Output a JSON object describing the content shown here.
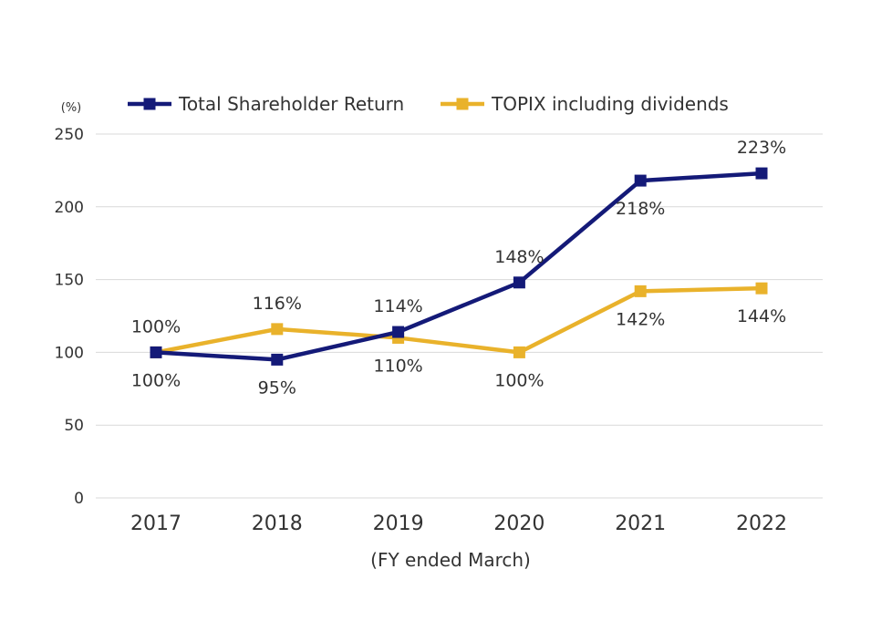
{
  "chart_data": {
    "type": "line",
    "categories": [
      "2017",
      "2018",
      "2019",
      "2020",
      "2021",
      "2022"
    ],
    "ylim": [
      0,
      250
    ],
    "yticks": [
      0,
      50,
      100,
      150,
      200,
      250
    ],
    "ylabel": "(%)",
    "xlabel": "(FY ended March)",
    "grid": true,
    "legend_position": "top",
    "series": [
      {
        "name": "Total Shareholder Return",
        "values": [
          100,
          95,
          114,
          148,
          218,
          223
        ],
        "labels": [
          "100%",
          "95%",
          "114%",
          "148%",
          "218%",
          "223%"
        ],
        "label_positions": [
          "below",
          "below",
          "above",
          "above",
          "below",
          "above"
        ],
        "color": "#141a78"
      },
      {
        "name": "TOPIX including dividends",
        "values": [
          100,
          116,
          110,
          100,
          142,
          144
        ],
        "labels": [
          "100%",
          "116%",
          "110%",
          "100%",
          "142%",
          "144%"
        ],
        "label_positions": [
          "above",
          "above",
          "below",
          "below",
          "below",
          "below"
        ],
        "color": "#e9b22b"
      }
    ],
    "grid_color": "#d9d9d9"
  }
}
